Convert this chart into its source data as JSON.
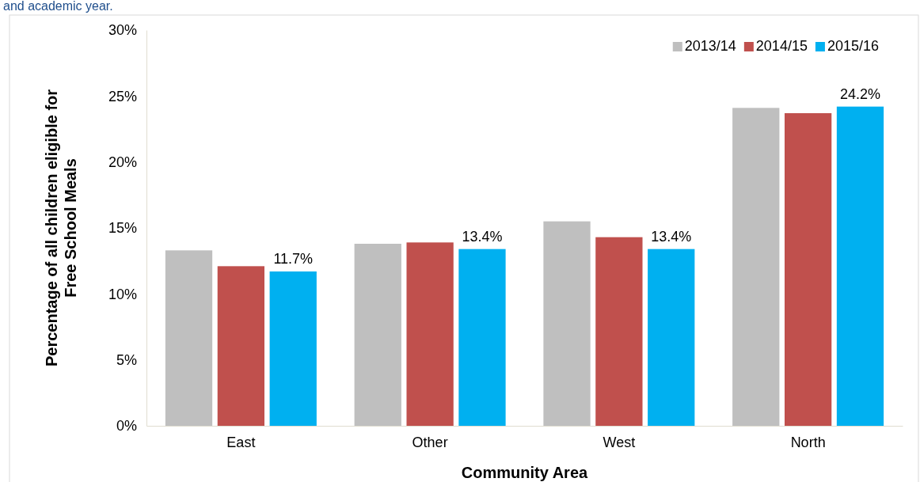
{
  "chart_data": {
    "type": "bar",
    "xlabel": "Community Area",
    "ylabel": "Percentage of all children eligible for Free School Meals",
    "annotations": [
      "and academic year."
    ],
    "categories": [
      "East",
      "Other",
      "West",
      "North"
    ],
    "series": [
      {
        "name": "2013/14",
        "color": "#bfbfbf",
        "values": [
          13.3,
          13.8,
          15.5,
          24.1
        ]
      },
      {
        "name": "2014/15",
        "color": "#c0504d",
        "values": [
          12.1,
          13.9,
          14.3,
          23.7
        ]
      },
      {
        "name": "2015/16",
        "color": "#00b0f0",
        "values": [
          11.7,
          13.4,
          13.4,
          24.2
        ],
        "value_labels": [
          "11.7%",
          "13.4%",
          "13.4%",
          "24.2%"
        ]
      }
    ],
    "ylim": [
      0,
      30
    ],
    "yticks": [
      {
        "value": 0,
        "label": "0%"
      },
      {
        "value": 5,
        "label": "5%"
      },
      {
        "value": 10,
        "label": "10%"
      },
      {
        "value": 15,
        "label": "15%"
      },
      {
        "value": 20,
        "label": "20%"
      },
      {
        "value": 25,
        "label": "25%"
      },
      {
        "value": 30,
        "label": "30%"
      }
    ],
    "legend": "top right",
    "grid": false
  }
}
